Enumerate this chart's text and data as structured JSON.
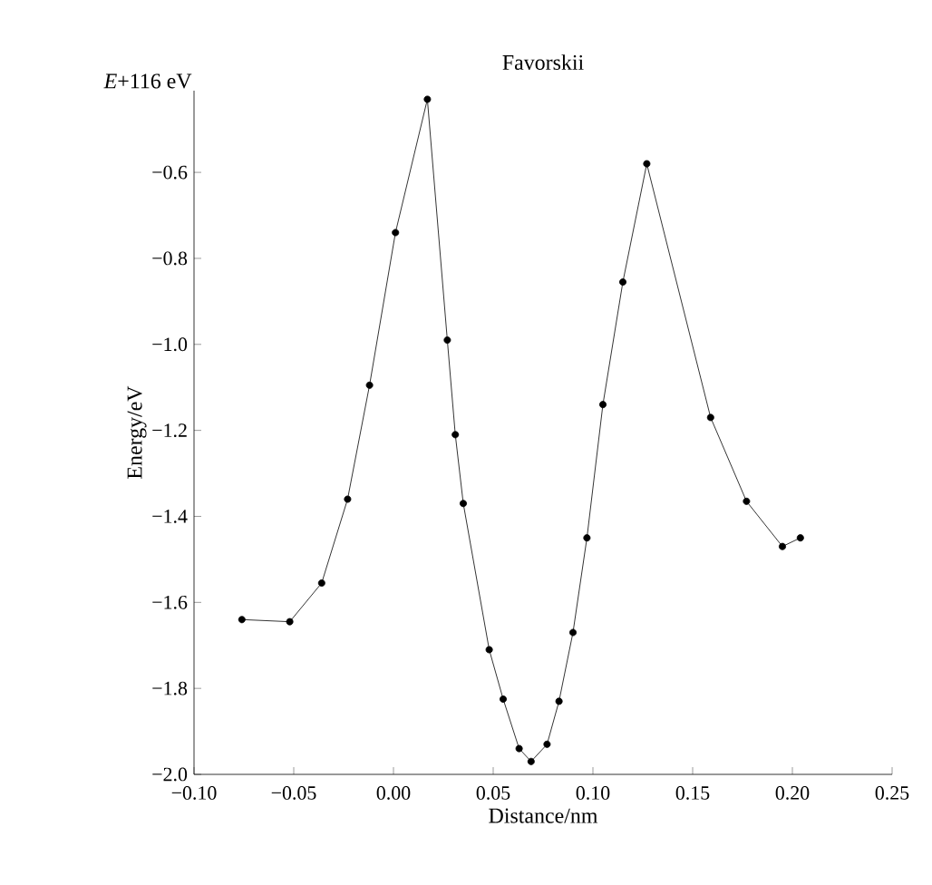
{
  "chart_data": {
    "type": "line",
    "title": "Favorskii",
    "xlabel": "Distance/nm",
    "ylabel": "Energy/eV",
    "annotations": [
      "*E*+116 eV"
    ],
    "x": [
      -0.076,
      -0.052,
      -0.036,
      -0.023,
      -0.012,
      0.001,
      0.017,
      0.027,
      0.031,
      0.035,
      0.048,
      0.055,
      0.063,
      0.069,
      0.077,
      0.083,
      0.09,
      0.097,
      0.105,
      0.115,
      0.127,
      0.159,
      0.177,
      0.195,
      0.204
    ],
    "series": [
      {
        "color": "#000000",
        "values": [
          -1.64,
          -1.645,
          -1.555,
          -1.36,
          -1.095,
          -0.74,
          -0.43,
          -0.99,
          -1.21,
          -1.37,
          -1.71,
          -1.825,
          -1.94,
          -1.97,
          -1.93,
          -1.83,
          -1.67,
          -1.45,
          -1.14,
          -0.855,
          -0.58,
          -1.17,
          -1.365,
          -1.47,
          -1.45
        ]
      }
    ],
    "xlim": [
      -0.1,
      0.25
    ],
    "ylim": [
      -2.0,
      -0.41
    ],
    "xticks": [
      {
        "value": -0.1,
        "label": "−0.10"
      },
      {
        "value": -0.05,
        "label": "−0.05"
      },
      {
        "value": 0,
        "label": "0.00"
      },
      {
        "value": 0.05,
        "label": "0.05"
      },
      {
        "value": 0.1,
        "label": "0.10"
      },
      {
        "value": 0.15,
        "label": "0.15"
      },
      {
        "value": 0.2,
        "label": "0.20"
      },
      {
        "value": 0.25,
        "label": "0.25"
      }
    ],
    "yticks": [
      {
        "value": -2.0,
        "label": "−2.0"
      },
      {
        "value": -1.8,
        "label": "−1.8"
      },
      {
        "value": -1.6,
        "label": "−1.6"
      },
      {
        "value": -1.4,
        "label": "−1.4"
      },
      {
        "value": -1.2,
        "label": "−1.2"
      },
      {
        "value": -1.0,
        "label": "−1.0"
      },
      {
        "value": -0.8,
        "label": "−0.8"
      },
      {
        "value": -0.6,
        "label": "−0.6"
      }
    ],
    "grid": false,
    "marker": "circle",
    "line_style": "solid"
  }
}
